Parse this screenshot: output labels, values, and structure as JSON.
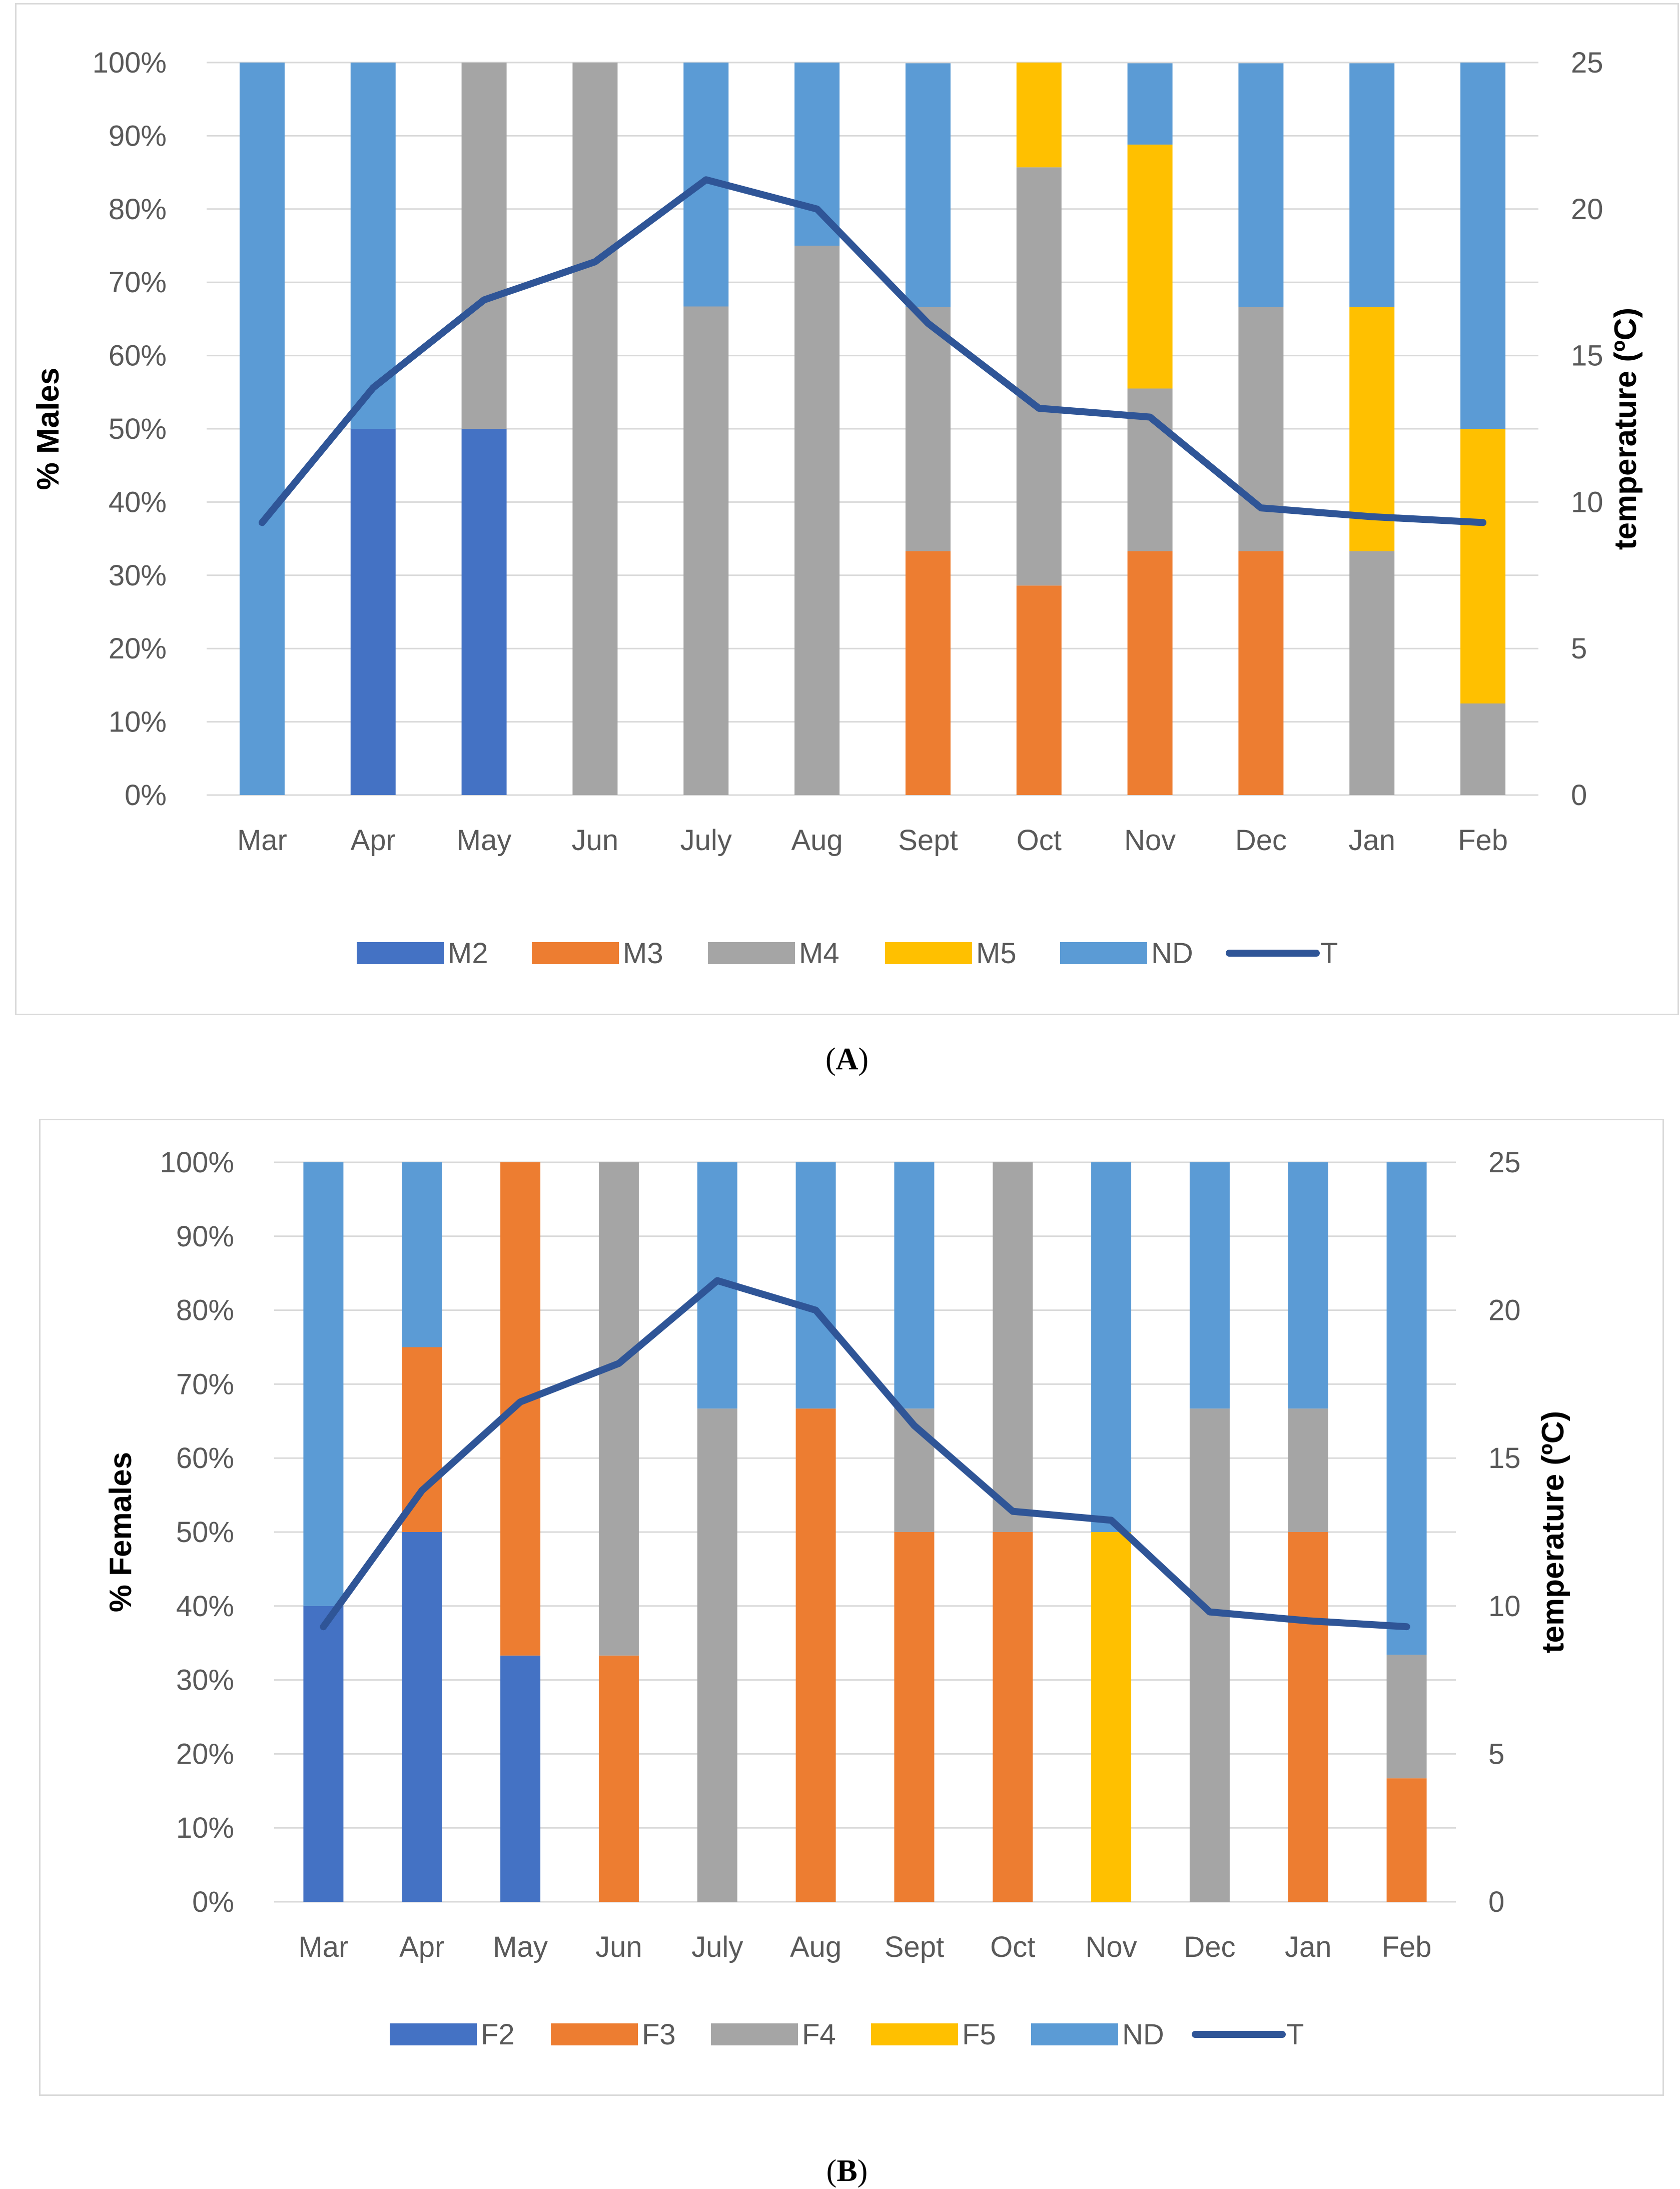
{
  "chart_data": [
    {
      "type": "bar",
      "panel_label": "A",
      "stacked": true,
      "percent": true,
      "ylabel": "% Males",
      "y2label": "temperature (ºC)",
      "ylim": [
        0,
        100
      ],
      "y2lim": [
        0,
        25
      ],
      "yticks": [
        "0%",
        "10%",
        "20%",
        "30%",
        "40%",
        "50%",
        "60%",
        "70%",
        "80%",
        "90%",
        "100%"
      ],
      "y2ticks": [
        "0",
        "5",
        "10",
        "15",
        "20",
        "25"
      ],
      "categories": [
        "Mar",
        "Apr",
        "May",
        "Jun",
        "July",
        "Aug",
        "Sept",
        "Oct",
        "Nov",
        "Dec",
        "Jan",
        "Feb"
      ],
      "series": [
        {
          "name": "M2",
          "color": "#4472c4",
          "values": [
            0,
            50,
            50,
            0,
            0,
            0,
            0,
            0,
            0,
            0,
            0,
            0
          ]
        },
        {
          "name": "M3",
          "color": "#ed7d31",
          "values": [
            0,
            0,
            0,
            0,
            0,
            0,
            33.3,
            28.6,
            33.3,
            33.3,
            0,
            0
          ]
        },
        {
          "name": "M4",
          "color": "#a5a5a5",
          "values": [
            0,
            0,
            50,
            100,
            66.7,
            75,
            33.3,
            57.1,
            22.2,
            33.3,
            33.3,
            12.5
          ]
        },
        {
          "name": "M5",
          "color": "#ffc000",
          "values": [
            0,
            0,
            0,
            0,
            0,
            0,
            0,
            14.3,
            33.3,
            0,
            33.3,
            37.5
          ]
        },
        {
          "name": "ND",
          "color": "#5b9bd5",
          "values": [
            100,
            50,
            0,
            0,
            33.3,
            25,
            33.3,
            0,
            11.1,
            33.3,
            33.3,
            50
          ]
        }
      ],
      "line": {
        "name": "T",
        "color": "#2f5597",
        "axis": "secondary",
        "values": [
          9.3,
          13.9,
          16.9,
          18.2,
          21.0,
          20.0,
          16.1,
          13.2,
          12.9,
          9.8,
          9.5,
          9.3
        ]
      },
      "legend": [
        "M2",
        "M3",
        "M4",
        "M5",
        "ND",
        "T"
      ],
      "legend_position": "bottom"
    },
    {
      "type": "bar",
      "panel_label": "B",
      "stacked": true,
      "percent": true,
      "ylabel": "% Females",
      "y2label": "temperature (ºC)",
      "ylim": [
        0,
        100
      ],
      "y2lim": [
        0,
        25
      ],
      "yticks": [
        "0%",
        "10%",
        "20%",
        "30%",
        "40%",
        "50%",
        "60%",
        "70%",
        "80%",
        "90%",
        "100%"
      ],
      "y2ticks": [
        "0",
        "5",
        "10",
        "15",
        "20",
        "25"
      ],
      "categories": [
        "Mar",
        "Apr",
        "May",
        "Jun",
        "July",
        "Aug",
        "Sept",
        "Oct",
        "Nov",
        "Dec",
        "Jan",
        "Feb"
      ],
      "series": [
        {
          "name": "F2",
          "color": "#4472c4",
          "values": [
            40,
            50,
            33.3,
            0,
            0,
            0,
            0,
            0,
            0,
            0,
            0,
            0
          ]
        },
        {
          "name": "F3",
          "color": "#ed7d31",
          "values": [
            0,
            25,
            66.7,
            33.3,
            0,
            66.7,
            50,
            50,
            0,
            0,
            50,
            16.7
          ]
        },
        {
          "name": "F4",
          "color": "#a5a5a5",
          "values": [
            0,
            0,
            0,
            66.7,
            66.7,
            0,
            16.7,
            50,
            0,
            66.7,
            16.7,
            16.7
          ]
        },
        {
          "name": "F5",
          "color": "#ffc000",
          "values": [
            0,
            0,
            0,
            0,
            0,
            0,
            0,
            0,
            50,
            0,
            0,
            0
          ]
        },
        {
          "name": "ND",
          "color": "#5b9bd5",
          "values": [
            60,
            25,
            0,
            0,
            33.3,
            33.3,
            33.3,
            0,
            50,
            33.3,
            33.3,
            66.6
          ]
        }
      ],
      "line": {
        "name": "T",
        "color": "#2f5597",
        "axis": "secondary",
        "values": [
          9.3,
          13.9,
          16.9,
          18.2,
          21.0,
          20.0,
          16.1,
          13.2,
          12.9,
          9.8,
          9.5,
          9.3
        ]
      },
      "legend": [
        "F2",
        "F3",
        "F4",
        "F5",
        "ND",
        "T"
      ],
      "legend_position": "bottom"
    }
  ]
}
